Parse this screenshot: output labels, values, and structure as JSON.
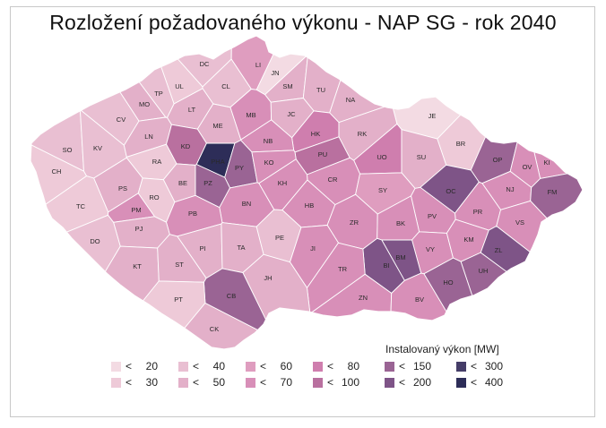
{
  "title": "Rozložení požadovaného výkonu - NAP SG - rok 2040",
  "legend": {
    "title": "Instalovaný výkon  [MW]",
    "items": [
      {
        "op": "<",
        "value": "20",
        "color": "#f3dbe3"
      },
      {
        "op": "<",
        "value": "30",
        "color": "#eecad8"
      },
      {
        "op": "<",
        "value": "40",
        "color": "#e9bfd2"
      },
      {
        "op": "<",
        "value": "50",
        "color": "#e3b0c9"
      },
      {
        "op": "<",
        "value": "60",
        "color": "#df9dbf"
      },
      {
        "op": "<",
        "value": "70",
        "color": "#d88fb8"
      },
      {
        "op": "<",
        "value": "80",
        "color": "#cf7eae"
      },
      {
        "op": "<",
        "value": "100",
        "color": "#b9709f"
      },
      {
        "op": "<",
        "value": "150",
        "color": "#9a6494"
      },
      {
        "op": "<",
        "value": "200",
        "color": "#7e5487"
      },
      {
        "op": "<",
        "value": "300",
        "color": "#453d68"
      },
      {
        "op": "<",
        "value": "400",
        "color": "#2d2d58"
      }
    ]
  },
  "districts": [
    {
      "code": "DC",
      "color": "#e9bfd2"
    },
    {
      "code": "LI",
      "color": "#df9dbf"
    },
    {
      "code": "JN",
      "color": "#f3dbe3"
    },
    {
      "code": "UL",
      "color": "#eecad8"
    },
    {
      "code": "CL",
      "color": "#e9bfd2"
    },
    {
      "code": "SM",
      "color": "#e3b0c9"
    },
    {
      "code": "TU",
      "color": "#e3b0c9"
    },
    {
      "code": "TP",
      "color": "#e9bfd2"
    },
    {
      "code": "NA",
      "color": "#e3b0c9"
    },
    {
      "code": "MO",
      "color": "#e3b0c9"
    },
    {
      "code": "LT",
      "color": "#e3b0c9"
    },
    {
      "code": "MB",
      "color": "#d88fb8"
    },
    {
      "code": "JC",
      "color": "#e3b0c9"
    },
    {
      "code": "JE",
      "color": "#f3dbe3"
    },
    {
      "code": "CV",
      "color": "#e9bfd2"
    },
    {
      "code": "ME",
      "color": "#e3b0c9"
    },
    {
      "code": "HK",
      "color": "#cf7eae"
    },
    {
      "code": "RK",
      "color": "#e3b0c9"
    },
    {
      "code": "BR",
      "color": "#eecad8"
    },
    {
      "code": "SO",
      "color": "#e9bfd2"
    },
    {
      "code": "KV",
      "color": "#e9bfd2"
    },
    {
      "code": "LN",
      "color": "#e3b0c9"
    },
    {
      "code": "KD",
      "color": "#b9709f"
    },
    {
      "code": "NB",
      "color": "#d88fb8"
    },
    {
      "code": "PHA",
      "color": "#2d2d58"
    },
    {
      "code": "PU",
      "color": "#b9709f"
    },
    {
      "code": "UO",
      "color": "#cf7eae"
    },
    {
      "code": "SU",
      "color": "#e3b0c9"
    },
    {
      "code": "OP",
      "color": "#9a6494"
    },
    {
      "code": "KI",
      "color": "#d88fb8"
    },
    {
      "code": "OV",
      "color": "#d88fb8"
    },
    {
      "code": "CH",
      "color": "#eecad8"
    },
    {
      "code": "RA",
      "color": "#eecad8"
    },
    {
      "code": "PY",
      "color": "#9a6494"
    },
    {
      "code": "KO",
      "color": "#d88fb8"
    },
    {
      "code": "CR",
      "color": "#d88fb8"
    },
    {
      "code": "PS",
      "color": "#e3b0c9"
    },
    {
      "code": "BE",
      "color": "#e3b0c9"
    },
    {
      "code": "PZ",
      "color": "#9a6494"
    },
    {
      "code": "KH",
      "color": "#d88fb8"
    },
    {
      "code": "SY",
      "color": "#df9dbf"
    },
    {
      "code": "OC",
      "color": "#7e5487"
    },
    {
      "code": "NJ",
      "color": "#d88fb8"
    },
    {
      "code": "FM",
      "color": "#9a6494"
    },
    {
      "code": "TC",
      "color": "#eecad8"
    },
    {
      "code": "RO",
      "color": "#eecad8"
    },
    {
      "code": "PM",
      "color": "#d88fb8"
    },
    {
      "code": "BN",
      "color": "#d88fb8"
    },
    {
      "code": "HB",
      "color": "#d88fb8"
    },
    {
      "code": "PR",
      "color": "#d88fb8"
    },
    {
      "code": "PB",
      "color": "#d88fb8"
    },
    {
      "code": "ZR",
      "color": "#d88fb8"
    },
    {
      "code": "PV",
      "color": "#d88fb8"
    },
    {
      "code": "VS",
      "color": "#d88fb8"
    },
    {
      "code": "BK",
      "color": "#d88fb8"
    },
    {
      "code": "PJ",
      "color": "#e3b0c9"
    },
    {
      "code": "PE",
      "color": "#e9bfd2"
    },
    {
      "code": "DO",
      "color": "#e9bfd2"
    },
    {
      "code": "JI",
      "color": "#d88fb8"
    },
    {
      "code": "VY",
      "color": "#d88fb8"
    },
    {
      "code": "KM",
      "color": "#d88fb8"
    },
    {
      "code": "ZL",
      "color": "#7e5487"
    },
    {
      "code": "PI",
      "color": "#e3b0c9"
    },
    {
      "code": "TA",
      "color": "#e3b0c9"
    },
    {
      "code": "BM",
      "color": "#7e5487"
    },
    {
      "code": "KT",
      "color": "#e3b0c9"
    },
    {
      "code": "ST",
      "color": "#e3b0c9"
    },
    {
      "code": "BI",
      "color": "#7e5487"
    },
    {
      "code": "TR",
      "color": "#d88fb8"
    },
    {
      "code": "UH",
      "color": "#9a6494"
    },
    {
      "code": "JH",
      "color": "#e3b0c9"
    },
    {
      "code": "HO",
      "color": "#9a6494"
    },
    {
      "code": "CB",
      "color": "#9a6494"
    },
    {
      "code": "PT",
      "color": "#eecad8"
    },
    {
      "code": "ZN",
      "color": "#d88fb8"
    },
    {
      "code": "BV",
      "color": "#d88fb8"
    },
    {
      "code": "CK",
      "color": "#e3b0c9"
    }
  ]
}
